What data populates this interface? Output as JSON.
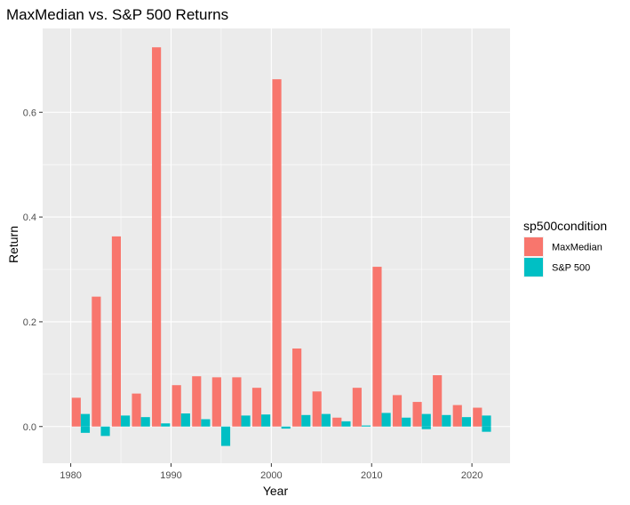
{
  "chart_data": {
    "type": "bar",
    "title": "MaxMedian vs. S&P 500 Returns",
    "xlabel": "Year",
    "ylabel": "Return",
    "xlim": [
      1977.2,
      2023.8
    ],
    "ylim": [
      -0.07,
      0.76
    ],
    "x_ticks": [
      1980,
      1990,
      2000,
      2010,
      2020
    ],
    "y_ticks": [
      0.0,
      0.2,
      0.4,
      0.6
    ],
    "y_tick_labels": [
      "0.0",
      "0.2",
      "0.4",
      "0.6"
    ],
    "grid": true,
    "legend": {
      "title": "sp500condition",
      "position": "right"
    },
    "x": [
      1981,
      1983,
      1985,
      1987,
      1989,
      1991,
      1993,
      1995,
      1997,
      1999,
      2001,
      2003,
      2005,
      2007,
      2009,
      2011,
      2013,
      2015,
      2017,
      2019,
      2021
    ],
    "series": [
      {
        "name": "MaxMedian",
        "color": "#F8766D",
        "values": [
          0.055,
          0.248,
          0.363,
          0.063,
          0.724,
          0.079,
          0.096,
          0.094,
          0.094,
          0.074,
          0.663,
          0.149,
          0.067,
          0.017,
          0.074,
          0.305,
          0.06,
          0.047,
          0.098,
          0.041,
          0.036
        ]
      },
      {
        "name": "S&P 500",
        "color": "#00BFC4",
        "values": [
          0.024,
          -0.018,
          0.021,
          0.018,
          0.006,
          0.025,
          0.014,
          -0.037,
          0.021,
          0.023,
          -0.004,
          0.022,
          0.024,
          0.01,
          0.002,
          0.026,
          0.017,
          0.024,
          0.022,
          0.018,
          0.021
        ]
      }
    ],
    "negative_overlays": [
      {
        "series": "S&P 500",
        "x": 1981,
        "value": -0.012
      },
      {
        "series": "S&P 500",
        "x": 2015,
        "value": -0.005
      },
      {
        "series": "S&P 500",
        "x": 2021,
        "value": -0.01
      }
    ]
  },
  "colors": {
    "panel_background": "#EBEBEB",
    "grid_major": "#FFFFFF",
    "tick_text": "#4D4D4D"
  }
}
